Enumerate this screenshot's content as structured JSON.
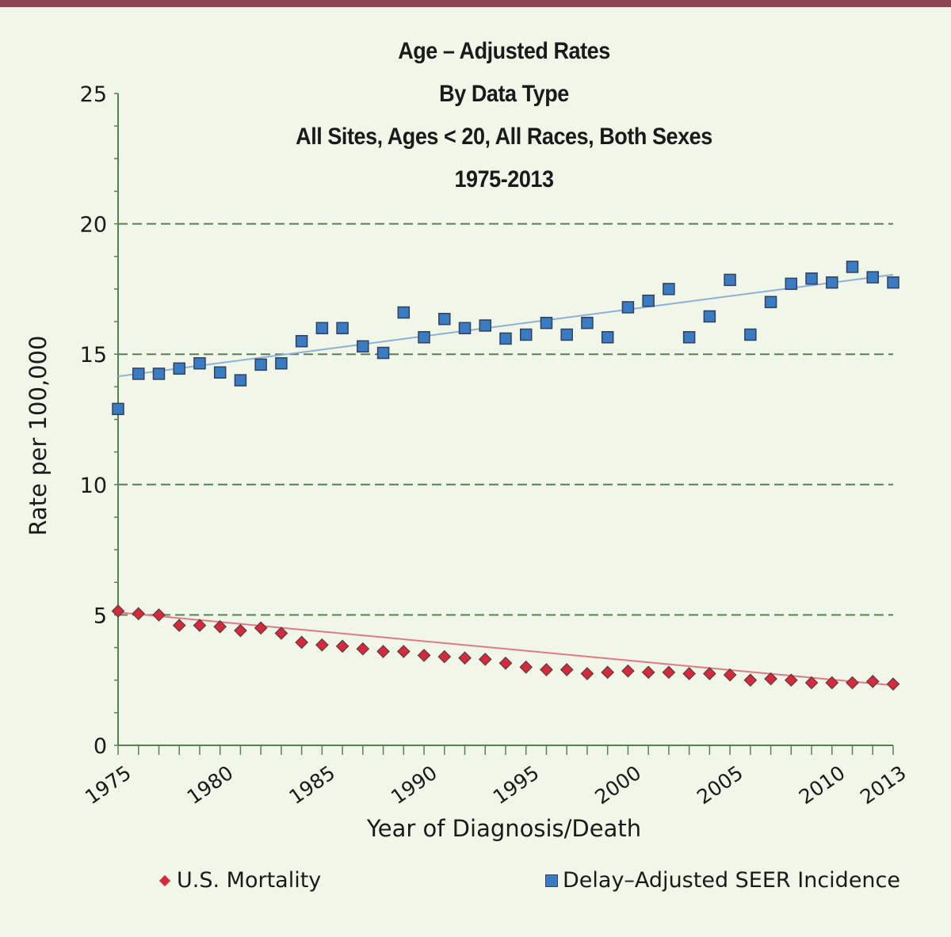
{
  "colors": {
    "top_bar": "#8b4553",
    "background": "#f0f6e8",
    "axis": "#5a7f54",
    "grid": "#5a7f54",
    "mortality_marker": "#d42a3c",
    "mortality_trend": "#e07a86",
    "incidence_marker": "#3a7cc4",
    "incidence_trend": "#8fb0d6"
  },
  "chart_data": {
    "type": "scatter",
    "title_lines": [
      "Age – Adjusted Rates",
      "By Data Type",
      "All Sites, Ages < 20, All Races, Both Sexes",
      "1975-2013"
    ],
    "xlabel": "Year of Diagnosis/Death",
    "ylabel": "Rate per 100,000",
    "xlim": [
      1975,
      2013
    ],
    "ylim": [
      0,
      25
    ],
    "x_ticks": [
      1975,
      1980,
      1985,
      1990,
      1995,
      2000,
      2005,
      2010,
      2013
    ],
    "y_ticks": [
      0,
      5,
      10,
      15,
      20,
      25
    ],
    "y_minor_step": 1.25,
    "grid": "horizontal dashed at 5, 10, 15, 20",
    "legend_position": "bottom",
    "x": [
      1975,
      1976,
      1977,
      1978,
      1979,
      1980,
      1981,
      1982,
      1983,
      1984,
      1985,
      1986,
      1987,
      1988,
      1989,
      1990,
      1991,
      1992,
      1993,
      1994,
      1995,
      1996,
      1997,
      1998,
      1999,
      2000,
      2001,
      2002,
      2003,
      2004,
      2005,
      2006,
      2007,
      2008,
      2009,
      2010,
      2011,
      2012,
      2013
    ],
    "series": [
      {
        "name": "U.S. Mortality",
        "marker": "diamond",
        "values": [
          5.15,
          5.05,
          5.0,
          4.6,
          4.6,
          4.55,
          4.4,
          4.5,
          4.3,
          3.95,
          3.85,
          3.8,
          3.7,
          3.6,
          3.6,
          3.45,
          3.4,
          3.35,
          3.3,
          3.15,
          3.0,
          2.9,
          2.9,
          2.75,
          2.8,
          2.85,
          2.8,
          2.8,
          2.75,
          2.75,
          2.7,
          2.5,
          2.55,
          2.5,
          2.4,
          2.4,
          2.4,
          2.45,
          2.35
        ],
        "trend": {
          "start": [
            1975,
            5.1
          ],
          "end": [
            2013,
            2.3
          ]
        }
      },
      {
        "name": "Delay–Adjusted SEER Incidence",
        "marker": "square",
        "values": [
          12.9,
          14.25,
          14.25,
          14.45,
          14.65,
          14.3,
          14.0,
          14.6,
          14.65,
          15.5,
          16.0,
          16.0,
          15.3,
          15.05,
          16.6,
          15.65,
          16.35,
          16.0,
          16.1,
          15.6,
          15.75,
          16.2,
          15.75,
          16.2,
          15.65,
          16.8,
          17.05,
          17.5,
          15.65,
          16.45,
          17.85,
          15.75,
          17.0,
          17.7,
          17.9,
          17.75,
          18.35,
          17.95,
          17.75
        ],
        "trend": {
          "start": [
            1975,
            14.15
          ],
          "end": [
            2013,
            18.05
          ]
        }
      }
    ]
  },
  "legend": {
    "mortality_label": "U.S. Mortality",
    "incidence_label": "Delay–Adjusted SEER Incidence"
  }
}
